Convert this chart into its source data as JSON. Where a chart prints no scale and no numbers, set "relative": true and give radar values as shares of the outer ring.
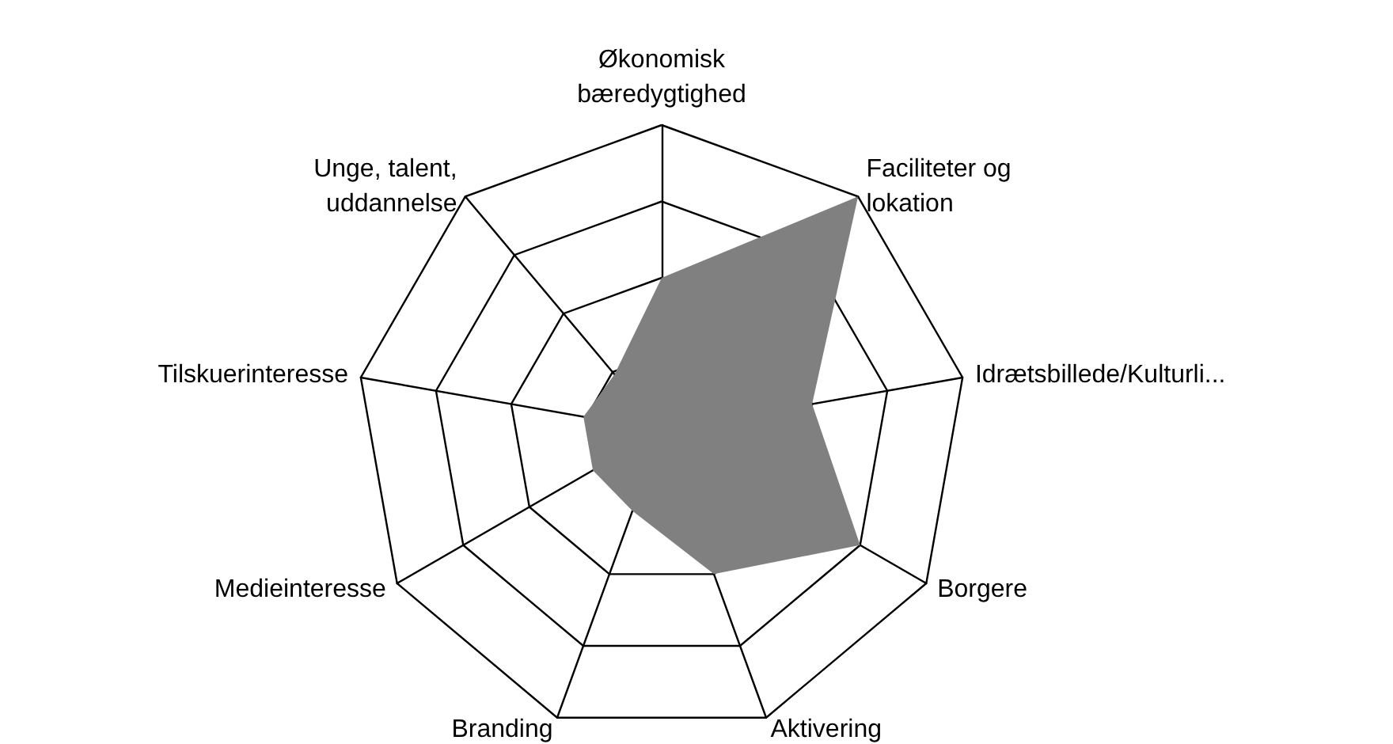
{
  "chart_data": {
    "type": "radar",
    "relative": true,
    "categories": [
      "Økonomisk bæredygtighed",
      "Faciliteter og lokation",
      "Idrætsbillede/Kulturli...",
      "Borgere",
      "Aktivering",
      "Branding",
      "Medieinteresse",
      "Tilskuerinteresse",
      "Unge, talent, uddannelse"
    ],
    "series": [
      {
        "color": "#808080",
        "values": [
          0.5,
          1,
          0.5,
          0.75,
          0.5,
          0.28,
          0.26,
          0.26,
          0.24
        ]
      }
    ],
    "grid": true,
    "marker": "none"
  }
}
